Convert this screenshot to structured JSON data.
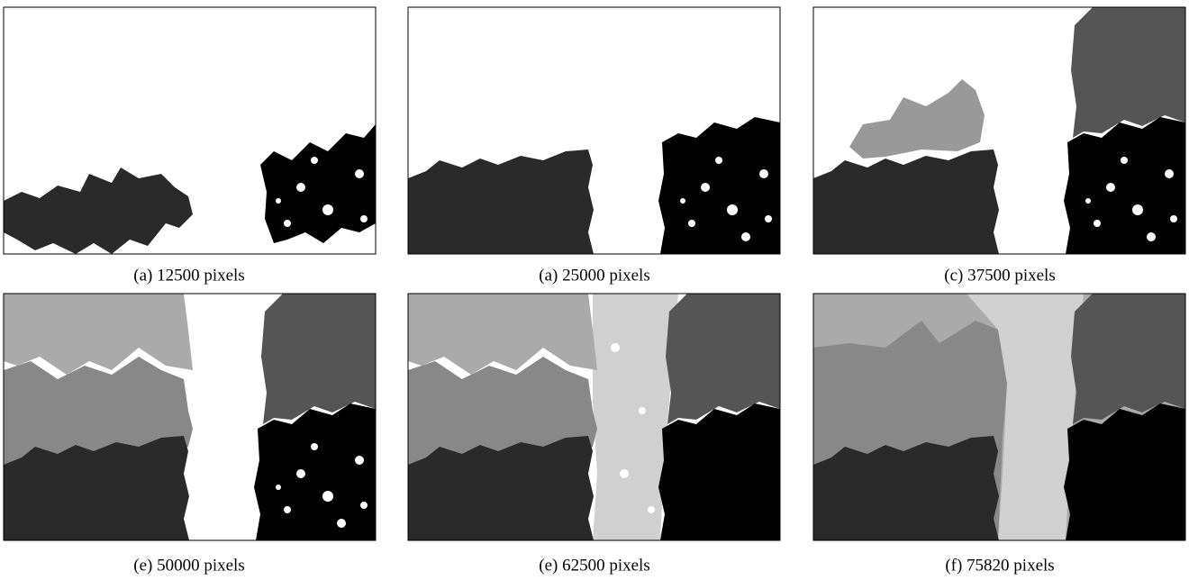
{
  "figure": {
    "panels": [
      {
        "caption": "(a) 12500 pixels"
      },
      {
        "caption": "(a) 25000 pixels"
      },
      {
        "caption": "(c) 37500 pixels"
      },
      {
        "caption": "(e) 50000 pixels"
      },
      {
        "caption": "(e) 62500 pixels"
      },
      {
        "caption": "(f) 75820 pixels"
      }
    ]
  }
}
